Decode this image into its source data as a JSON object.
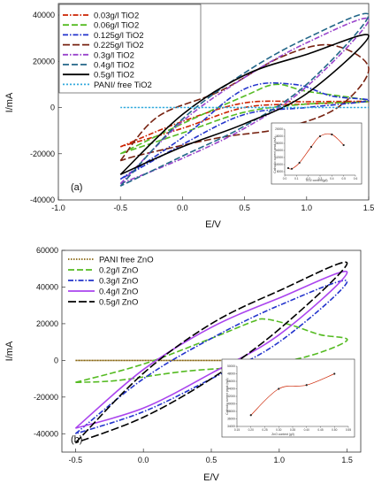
{
  "chart_data": [
    {
      "panel_label": "(a)",
      "type": "line",
      "title": "",
      "xlabel": "E/V",
      "ylabel": "I/mA",
      "xlim": [
        -1.0,
        1.5
      ],
      "ylim": [
        -40000,
        45000
      ],
      "xticks": [
        -1.0,
        -0.5,
        0.0,
        0.5,
        1.0,
        1.5
      ],
      "xtick_labels": [
        "-1.0",
        "-0.5",
        "0.0",
        "0.5",
        "1.0",
        "1.5"
      ],
      "yticks": [
        -40000,
        -20000,
        0,
        20000,
        40000
      ],
      "ytick_labels": [
        "-40000",
        "-20000",
        "0",
        "20000",
        "40000"
      ],
      "legend_position": "top-left, boxed",
      "series": [
        {
          "name": "0.03g/l TiO2",
          "color": "#cc2200",
          "dash": "6,2,1.5,2",
          "forward": [
            [
              -0.5,
              -17000
            ],
            [
              0.0,
              -6000
            ],
            [
              0.5,
              2000
            ],
            [
              1.0,
              2500
            ],
            [
              1.5,
              2600
            ]
          ],
          "reverse": [
            [
              1.5,
              2600
            ],
            [
              1.0,
              1500
            ],
            [
              0.5,
              0
            ],
            [
              0.0,
              -9000
            ],
            [
              -0.5,
              -17000
            ]
          ]
        },
        {
          "name": "0.06g/l TiO2",
          "color": "#55bb22",
          "dash": "7,3",
          "forward": [
            [
              -0.5,
              -20000
            ],
            [
              0.0,
              -7000
            ],
            [
              0.5,
              5000
            ],
            [
              0.75,
              10000
            ],
            [
              1.0,
              7000
            ],
            [
              1.5,
              2800
            ]
          ],
          "reverse": [
            [
              1.5,
              2800
            ],
            [
              1.0,
              1500
            ],
            [
              0.5,
              -2000
            ],
            [
              0.0,
              -11000
            ],
            [
              -0.5,
              -20000
            ]
          ]
        },
        {
          "name": "0.125g/l TiO2",
          "color": "#2233cc",
          "dash": "6,2,1.5,2",
          "forward": [
            [
              -0.5,
              -31000
            ],
            [
              0.0,
              -13000
            ],
            [
              0.5,
              8000
            ],
            [
              0.9,
              10000
            ],
            [
              1.2,
              5000
            ],
            [
              1.5,
              3000
            ]
          ],
          "reverse": [
            [
              1.5,
              3000
            ],
            [
              1.0,
              0
            ],
            [
              0.5,
              -3000
            ],
            [
              0.0,
              -16000
            ],
            [
              -0.5,
              -31000
            ]
          ]
        },
        {
          "name": "0.225g/l TiO2",
          "color": "#772211",
          "dash": "8,3",
          "forward": [
            [
              -0.5,
              -23000
            ],
            [
              -0.2,
              -4000
            ],
            [
              0.3,
              7000
            ],
            [
              0.8,
              22000
            ],
            [
              1.2,
              27000
            ],
            [
              1.5,
              17000
            ]
          ],
          "reverse": [
            [
              1.5,
              17000
            ],
            [
              1.25,
              0
            ],
            [
              0.8,
              -9000
            ],
            [
              0.3,
              -13000
            ],
            [
              -0.3,
              -20000
            ],
            [
              -0.5,
              -23000
            ]
          ]
        },
        {
          "name": "0.3g/l TiO2",
          "color": "#9944cc",
          "dash": "6,2,1.5,2",
          "forward": [
            [
              -0.5,
              -33000
            ],
            [
              0.0,
              -6000
            ],
            [
              0.5,
              13000
            ],
            [
              1.0,
              28000
            ],
            [
              1.5,
              38000
            ]
          ],
          "reverse": [
            [
              1.5,
              38000
            ],
            [
              1.0,
              9000
            ],
            [
              0.5,
              -9000
            ],
            [
              0.0,
              -22000
            ],
            [
              -0.5,
              -33000
            ]
          ]
        },
        {
          "name": "0.4g/l TiO2",
          "color": "#226688",
          "dash": "7,3",
          "forward": [
            [
              -0.5,
              -34000
            ],
            [
              0.0,
              -5000
            ],
            [
              0.5,
              15000
            ],
            [
              1.0,
              30000
            ],
            [
              1.5,
              40000
            ]
          ],
          "reverse": [
            [
              1.5,
              40000
            ],
            [
              1.0,
              10000
            ],
            [
              0.5,
              -8000
            ],
            [
              0.0,
              -21000
            ],
            [
              -0.5,
              -34000
            ]
          ]
        },
        {
          "name": "0.5g/l TiO2",
          "color": "#000000",
          "dash": "",
          "forward": [
            [
              -0.5,
              -29000
            ],
            [
              0.0,
              -3000
            ],
            [
              0.5,
              14000
            ],
            [
              1.0,
              23000
            ],
            [
              1.5,
              31000
            ]
          ],
          "reverse": [
            [
              1.5,
              31000
            ],
            [
              1.0,
              6000
            ],
            [
              0.5,
              -7000
            ],
            [
              0.0,
              -17000
            ],
            [
              -0.5,
              -29000
            ]
          ]
        },
        {
          "name": "PANI/ free TiO2",
          "color": "#33aadd",
          "dash": "2,2",
          "forward": [
            [
              -0.5,
              0
            ],
            [
              1.5,
              0
            ]
          ],
          "reverse": [
            [
              1.5,
              0
            ],
            [
              -0.5,
              0
            ]
          ]
        }
      ]
    },
    {
      "type": "line",
      "xlabel": "TiO2 content(g/l)",
      "ylabel": "Cathodic current peak (mA)",
      "xlim": [
        0.0,
        0.6
      ],
      "ylim": [
        7000,
        20000
      ],
      "xticks": [
        0.0,
        0.1,
        0.2,
        0.3,
        0.4,
        0.5,
        0.6
      ],
      "xtick_labels": [
        "0.0",
        "0.1",
        "0.2",
        "0.3",
        "0.4",
        "0.5",
        "0.6"
      ],
      "yticks": [
        8000,
        10000,
        12000,
        14000,
        16000,
        18000,
        20000
      ],
      "ytick_labels": [
        "8000",
        "10000",
        "12000",
        "14000",
        "16000",
        "18000",
        "20000"
      ],
      "x": [
        0.03,
        0.06,
        0.125,
        0.225,
        0.3,
        0.4,
        0.5
      ],
      "values": [
        9000,
        8800,
        10500,
        15000,
        18000,
        18500,
        15500
      ],
      "color": "#cc2200"
    },
    {
      "panel_label": "(b)",
      "type": "line",
      "title": "",
      "xlabel": "E/V",
      "ylabel": "I/mA",
      "xlim": [
        -0.6,
        1.6
      ],
      "ylim": [
        -50000,
        60000
      ],
      "xticks": [
        -0.5,
        0.0,
        0.5,
        1.0,
        1.5
      ],
      "xtick_labels": [
        "-0.5",
        "0.0",
        "0.5",
        "1.0",
        "1.5"
      ],
      "yticks": [
        -40000,
        -20000,
        0,
        20000,
        40000,
        60000
      ],
      "ytick_labels": [
        "-40000",
        "-20000",
        "0",
        "20000",
        "40000",
        "60000"
      ],
      "legend_position": "top-left",
      "series": [
        {
          "name": "PANI free ZnO",
          "color": "#886611",
          "dash": "1.5,1.5",
          "forward": [
            [
              -0.5,
              0
            ],
            [
              1.5,
              0
            ]
          ],
          "reverse": [
            [
              1.5,
              0
            ],
            [
              -0.5,
              0
            ]
          ]
        },
        {
          "name": "0.2g/l ZnO",
          "color": "#55bb22",
          "dash": "7,3",
          "forward": [
            [
              -0.5,
              -12000
            ],
            [
              0.0,
              -2000
            ],
            [
              0.5,
              12000
            ],
            [
              0.8,
              21000
            ],
            [
              0.9,
              22500
            ],
            [
              1.1,
              19000
            ],
            [
              1.3,
              14000
            ],
            [
              1.5,
              11000
            ]
          ],
          "reverse": [
            [
              1.5,
              11000
            ],
            [
              1.2,
              2000
            ],
            [
              0.8,
              -3000
            ],
            [
              0.3,
              -6000
            ],
            [
              -0.2,
              -11000
            ],
            [
              -0.5,
              -12000
            ]
          ]
        },
        {
          "name": "0.3g/l ZnO",
          "color": "#2233cc",
          "dash": "6,2,1.5,2",
          "forward": [
            [
              -0.5,
              -40000
            ],
            [
              0.0,
              -10000
            ],
            [
              0.5,
              12000
            ],
            [
              1.0,
              30000
            ],
            [
              1.5,
              43000
            ]
          ],
          "reverse": [
            [
              1.5,
              43000
            ],
            [
              1.0,
              10000
            ],
            [
              0.5,
              -10000
            ],
            [
              0.0,
              -28000
            ],
            [
              -0.5,
              -40000
            ]
          ]
        },
        {
          "name": "0.4g/l ZnO",
          "color": "#aa44ee",
          "dash": "",
          "forward": [
            [
              -0.5,
              -37000
            ],
            [
              0.0,
              -5000
            ],
            [
              0.5,
              18000
            ],
            [
              1.0,
              34000
            ],
            [
              1.5,
              48000
            ]
          ],
          "reverse": [
            [
              1.5,
              48000
            ],
            [
              1.0,
              14000
            ],
            [
              0.5,
              -7000
            ],
            [
              0.0,
              -26000
            ],
            [
              -0.5,
              -37000
            ]
          ]
        },
        {
          "name": "0.5g/l ZnO",
          "color": "#000000",
          "dash": "9,3",
          "forward": [
            [
              -0.5,
              -45000
            ],
            [
              0.0,
              -7000
            ],
            [
              0.5,
              20000
            ],
            [
              1.0,
              38000
            ],
            [
              1.5,
              53000
            ]
          ],
          "reverse": [
            [
              1.5,
              53000
            ],
            [
              1.0,
              17000
            ],
            [
              0.5,
              -10000
            ],
            [
              0.0,
              -31000
            ],
            [
              -0.5,
              -45000
            ]
          ]
        }
      ]
    },
    {
      "type": "line",
      "xlabel": "ZnO content (g/l)",
      "ylabel": "Cathodic current peak (mA)",
      "xlim": [
        0.15,
        0.55
      ],
      "ylim": [
        34000,
        50000
      ],
      "xticks": [
        0.15,
        0.2,
        0.25,
        0.3,
        0.35,
        0.4,
        0.45,
        0.5,
        0.55
      ],
      "xtick_labels": [
        "0.15",
        "0.20",
        "0.25",
        "0.30",
        "0.35",
        "0.40",
        "0.45",
        "0.50",
        "0.55"
      ],
      "yticks": [
        34000,
        36000,
        38000,
        40000,
        42000,
        44000,
        46000,
        48000,
        50000
      ],
      "ytick_labels": [
        "34000",
        "36000",
        "38000",
        "40000",
        "42000",
        "44000",
        "46000",
        "48000",
        "50000"
      ],
      "x": [
        0.2,
        0.3,
        0.4,
        0.5
      ],
      "values": [
        37000,
        44000,
        45000,
        48000
      ],
      "color": "#cc2200"
    }
  ]
}
